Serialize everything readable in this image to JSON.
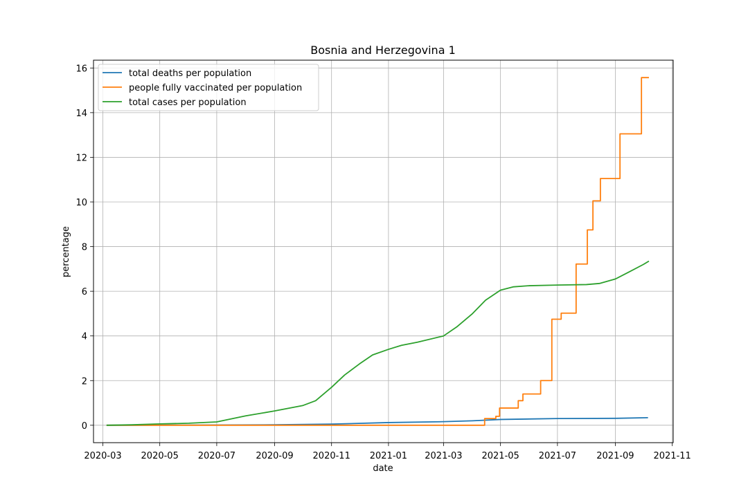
{
  "chart_data": {
    "type": "line",
    "title": "Bosnia and Herzegovina 1",
    "xlabel": "date",
    "ylabel": "percentage",
    "x_axis": "date",
    "xlim": [
      "2020-02-20",
      "2021-11-02"
    ],
    "ylim": [
      -0.78,
      16.35
    ],
    "x_ticks": [
      "2020-03",
      "2020-05",
      "2020-07",
      "2020-09",
      "2020-11",
      "2021-01",
      "2021-03",
      "2021-05",
      "2021-07",
      "2021-09",
      "2021-11"
    ],
    "y_ticks": [
      "0",
      "2",
      "4",
      "6",
      "8",
      "10",
      "12",
      "14",
      "16"
    ],
    "grid": true,
    "legend": "upper-left",
    "series": [
      {
        "name": "total deaths per population",
        "color": "#1f77b4",
        "step": false,
        "points": [
          [
            "2020-03-05",
            0.0
          ],
          [
            "2020-05-01",
            0.004
          ],
          [
            "2020-07-01",
            0.01
          ],
          [
            "2020-09-01",
            0.02
          ],
          [
            "2020-11-01",
            0.05
          ],
          [
            "2021-01-01",
            0.12
          ],
          [
            "2021-03-01",
            0.16
          ],
          [
            "2021-04-01",
            0.2
          ],
          [
            "2021-05-01",
            0.26
          ],
          [
            "2021-07-01",
            0.3
          ],
          [
            "2021-09-01",
            0.31
          ],
          [
            "2021-10-06",
            0.34
          ]
        ]
      },
      {
        "name": "people fully vaccinated per population",
        "color": "#ff7f0e",
        "step": true,
        "points": [
          [
            "2020-03-05",
            0.0
          ],
          [
            "2021-04-13",
            0.0
          ],
          [
            "2021-04-14",
            0.3
          ],
          [
            "2021-04-26",
            0.4
          ],
          [
            "2021-04-30",
            0.77
          ],
          [
            "2021-05-20",
            1.1
          ],
          [
            "2021-05-25",
            1.4
          ],
          [
            "2021-06-13",
            2.0
          ],
          [
            "2021-06-25",
            4.75
          ],
          [
            "2021-07-05",
            5.02
          ],
          [
            "2021-07-21",
            7.22
          ],
          [
            "2021-08-02",
            8.75
          ],
          [
            "2021-08-08",
            10.05
          ],
          [
            "2021-08-16",
            11.05
          ],
          [
            "2021-09-06",
            13.05
          ],
          [
            "2021-09-29",
            15.57
          ],
          [
            "2021-10-07",
            15.57
          ]
        ]
      },
      {
        "name": "total cases per population",
        "color": "#2ca02c",
        "step": false,
        "points": [
          [
            "2020-03-05",
            0.0
          ],
          [
            "2020-04-01",
            0.02
          ],
          [
            "2020-05-01",
            0.06
          ],
          [
            "2020-06-01",
            0.09
          ],
          [
            "2020-07-01",
            0.15
          ],
          [
            "2020-08-01",
            0.42
          ],
          [
            "2020-09-01",
            0.64
          ],
          [
            "2020-10-01",
            0.88
          ],
          [
            "2020-10-15",
            1.1
          ],
          [
            "2020-11-01",
            1.7
          ],
          [
            "2020-11-15",
            2.25
          ],
          [
            "2020-12-01",
            2.75
          ],
          [
            "2020-12-15",
            3.15
          ],
          [
            "2021-01-01",
            3.4
          ],
          [
            "2021-01-15",
            3.58
          ],
          [
            "2021-02-01",
            3.72
          ],
          [
            "2021-03-01",
            4.0
          ],
          [
            "2021-03-15",
            4.4
          ],
          [
            "2021-04-01",
            5.0
          ],
          [
            "2021-04-15",
            5.6
          ],
          [
            "2021-05-01",
            6.05
          ],
          [
            "2021-05-15",
            6.2
          ],
          [
            "2021-06-01",
            6.25
          ],
          [
            "2021-07-01",
            6.28
          ],
          [
            "2021-08-01",
            6.3
          ],
          [
            "2021-08-15",
            6.35
          ],
          [
            "2021-09-01",
            6.55
          ],
          [
            "2021-09-15",
            6.85
          ],
          [
            "2021-10-01",
            7.2
          ],
          [
            "2021-10-07",
            7.35
          ]
        ]
      }
    ]
  }
}
